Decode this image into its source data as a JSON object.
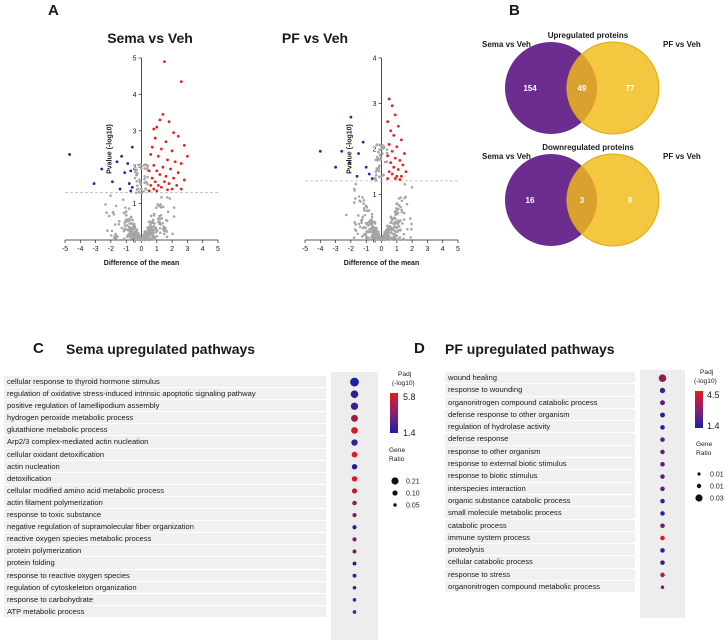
{
  "panel_letters": {
    "a": "A",
    "b": "B",
    "c": "C",
    "d": "D"
  },
  "colors": {
    "up": "#e8211c",
    "down": "#1f2aa8",
    "ns": "#a6a6a6",
    "sema": "#6c2d91",
    "pf": "#f2bb17",
    "overlap": "#d89028",
    "grad_high": "#e31a1c",
    "grad_low": "#1a1fa8"
  },
  "chart_data": [
    {
      "type": "scatter",
      "title": "Sema vs Veh",
      "xlabel": "Difference of the mean",
      "ylabel": "Pvalue (-log10)",
      "xlim": [
        -5,
        5
      ],
      "ylim": [
        0,
        5
      ],
      "xticks": [
        -5,
        -4,
        -3,
        -2,
        -1,
        0,
        1,
        2,
        3,
        4,
        5
      ],
      "yticks": [
        0,
        1,
        2,
        3,
        4,
        5
      ],
      "threshold": 1.3,
      "highlighted_points": [
        {
          "x": 1.5,
          "y": 4.9,
          "group": "up"
        },
        {
          "x": 2.6,
          "y": 4.35,
          "group": "up"
        },
        {
          "x": 1.4,
          "y": 3.45,
          "group": "up"
        },
        {
          "x": 1.2,
          "y": 3.3,
          "group": "up"
        },
        {
          "x": 1.8,
          "y": 3.25,
          "group": "up"
        },
        {
          "x": 0.8,
          "y": 3.05,
          "group": "up"
        },
        {
          "x": 1.0,
          "y": 3.1,
          "group": "up"
        },
        {
          "x": 2.1,
          "y": 2.95,
          "group": "up"
        },
        {
          "x": 2.4,
          "y": 2.85,
          "group": "up"
        },
        {
          "x": 0.9,
          "y": 2.8,
          "group": "up"
        },
        {
          "x": 1.6,
          "y": 2.7,
          "group": "up"
        },
        {
          "x": 2.8,
          "y": 2.6,
          "group": "up"
        },
        {
          "x": 0.7,
          "y": 2.55,
          "group": "up"
        },
        {
          "x": 1.3,
          "y": 2.5,
          "group": "up"
        },
        {
          "x": 2.0,
          "y": 2.45,
          "group": "up"
        },
        {
          "x": 3.0,
          "y": 2.3,
          "group": "up"
        },
        {
          "x": 0.6,
          "y": 2.35,
          "group": "up"
        },
        {
          "x": 1.1,
          "y": 2.3,
          "group": "up"
        },
        {
          "x": 1.7,
          "y": 2.2,
          "group": "up"
        },
        {
          "x": 2.2,
          "y": 2.15,
          "group": "up"
        },
        {
          "x": 2.6,
          "y": 2.1,
          "group": "up"
        },
        {
          "x": 0.8,
          "y": 2.05,
          "group": "up"
        },
        {
          "x": 1.4,
          "y": 2.0,
          "group": "up"
        },
        {
          "x": 1.9,
          "y": 1.95,
          "group": "up"
        },
        {
          "x": 0.5,
          "y": 1.9,
          "group": "up"
        },
        {
          "x": 1.0,
          "y": 1.9,
          "group": "up"
        },
        {
          "x": 2.4,
          "y": 1.85,
          "group": "up"
        },
        {
          "x": 1.2,
          "y": 1.8,
          "group": "up"
        },
        {
          "x": 1.6,
          "y": 1.75,
          "group": "up"
        },
        {
          "x": 2.1,
          "y": 1.7,
          "group": "up"
        },
        {
          "x": 0.7,
          "y": 1.7,
          "group": "up"
        },
        {
          "x": 2.8,
          "y": 1.65,
          "group": "up"
        },
        {
          "x": 0.9,
          "y": 1.6,
          "group": "up"
        },
        {
          "x": 1.5,
          "y": 1.6,
          "group": "up"
        },
        {
          "x": 1.8,
          "y": 1.55,
          "group": "up"
        },
        {
          "x": 0.6,
          "y": 1.5,
          "group": "up"
        },
        {
          "x": 1.1,
          "y": 1.5,
          "group": "up"
        },
        {
          "x": 2.3,
          "y": 1.5,
          "group": "up"
        },
        {
          "x": 1.3,
          "y": 1.45,
          "group": "up"
        },
        {
          "x": 2.0,
          "y": 1.4,
          "group": "up"
        },
        {
          "x": 0.8,
          "y": 1.4,
          "group": "up"
        },
        {
          "x": 1.7,
          "y": 1.38,
          "group": "up"
        },
        {
          "x": 2.6,
          "y": 1.4,
          "group": "up"
        },
        {
          "x": 0.5,
          "y": 1.35,
          "group": "up"
        },
        {
          "x": 1.0,
          "y": 1.35,
          "group": "up"
        },
        {
          "x": -0.6,
          "y": 2.55,
          "group": "down"
        },
        {
          "x": -1.3,
          "y": 2.3,
          "group": "down"
        },
        {
          "x": -1.6,
          "y": 2.15,
          "group": "down"
        },
        {
          "x": -0.9,
          "y": 2.1,
          "group": "down"
        },
        {
          "x": -2.6,
          "y": 1.95,
          "group": "down"
        },
        {
          "x": -0.7,
          "y": 1.9,
          "group": "down"
        },
        {
          "x": -1.1,
          "y": 1.85,
          "group": "down"
        },
        {
          "x": -4.7,
          "y": 2.35,
          "group": "down"
        },
        {
          "x": -3.1,
          "y": 1.55,
          "group": "down"
        },
        {
          "x": -1.9,
          "y": 1.6,
          "group": "down"
        },
        {
          "x": -0.8,
          "y": 1.55,
          "group": "down"
        },
        {
          "x": -0.6,
          "y": 1.45,
          "group": "down"
        },
        {
          "x": -1.4,
          "y": 1.4,
          "group": "down"
        },
        {
          "x": -0.7,
          "y": 1.35,
          "group": "down"
        }
      ]
    },
    {
      "type": "scatter",
      "title": "PF vs Veh",
      "xlabel": "Difference of the mean",
      "ylabel": "Pvalue (-log10)",
      "xlim": [
        -5,
        5
      ],
      "ylim": [
        0,
        4
      ],
      "xticks": [
        -5,
        -4,
        -3,
        -2,
        -1,
        0,
        1,
        2,
        3,
        4,
        5
      ],
      "yticks": [
        0,
        1,
        2,
        3,
        4
      ],
      "threshold": 1.3,
      "highlighted_points": [
        {
          "x": 0.5,
          "y": 3.1,
          "group": "up"
        },
        {
          "x": 0.7,
          "y": 2.95,
          "group": "up"
        },
        {
          "x": 0.9,
          "y": 2.75,
          "group": "up"
        },
        {
          "x": 0.4,
          "y": 2.6,
          "group": "up"
        },
        {
          "x": 1.1,
          "y": 2.5,
          "group": "up"
        },
        {
          "x": 0.6,
          "y": 2.4,
          "group": "up"
        },
        {
          "x": 0.8,
          "y": 2.3,
          "group": "up"
        },
        {
          "x": 1.3,
          "y": 2.2,
          "group": "up"
        },
        {
          "x": 0.5,
          "y": 2.1,
          "group": "up"
        },
        {
          "x": 1.0,
          "y": 2.05,
          "group": "up"
        },
        {
          "x": 0.7,
          "y": 1.95,
          "group": "up"
        },
        {
          "x": 1.5,
          "y": 1.9,
          "group": "up"
        },
        {
          "x": 0.4,
          "y": 1.85,
          "group": "up"
        },
        {
          "x": 0.9,
          "y": 1.8,
          "group": "up"
        },
        {
          "x": 1.2,
          "y": 1.75,
          "group": "up"
        },
        {
          "x": 0.6,
          "y": 1.7,
          "group": "up"
        },
        {
          "x": 1.4,
          "y": 1.65,
          "group": "up"
        },
        {
          "x": 0.8,
          "y": 1.6,
          "group": "up"
        },
        {
          "x": 1.1,
          "y": 1.55,
          "group": "up"
        },
        {
          "x": 0.5,
          "y": 1.5,
          "group": "up"
        },
        {
          "x": 1.6,
          "y": 1.5,
          "group": "up"
        },
        {
          "x": 0.7,
          "y": 1.45,
          "group": "up"
        },
        {
          "x": 1.0,
          "y": 1.4,
          "group": "up"
        },
        {
          "x": 1.3,
          "y": 1.4,
          "group": "up"
        },
        {
          "x": 0.4,
          "y": 1.35,
          "group": "up"
        },
        {
          "x": 0.9,
          "y": 1.35,
          "group": "up"
        },
        {
          "x": 1.2,
          "y": 1.33,
          "group": "up"
        },
        {
          "x": -2.0,
          "y": 2.7,
          "group": "down"
        },
        {
          "x": -1.2,
          "y": 2.15,
          "group": "down"
        },
        {
          "x": -4.0,
          "y": 1.95,
          "group": "down"
        },
        {
          "x": -2.6,
          "y": 1.95,
          "group": "down"
        },
        {
          "x": -1.5,
          "y": 1.9,
          "group": "down"
        },
        {
          "x": -2.1,
          "y": 1.7,
          "group": "down"
        },
        {
          "x": -3.0,
          "y": 1.6,
          "group": "down"
        },
        {
          "x": -1.0,
          "y": 1.6,
          "group": "down"
        },
        {
          "x": -1.6,
          "y": 1.4,
          "group": "down"
        },
        {
          "x": -0.8,
          "y": 1.45,
          "group": "down"
        },
        {
          "x": -0.6,
          "y": 1.35,
          "group": "down"
        }
      ]
    },
    {
      "type": "dot",
      "title": "Sema upregulated pathways",
      "legend": {
        "padj_title_1": "Padj",
        "padj_title_2": "(-log10)",
        "padj_max": "5.8",
        "padj_min": "1.4",
        "padj_range": [
          1.4,
          5.8
        ],
        "ratio_title_1": "Gene",
        "ratio_title_2": "Ratio",
        "ratio_labels": [
          "0.21",
          "0.10",
          "0.05"
        ],
        "ratio_values": [
          0.21,
          0.1,
          0.05
        ]
      },
      "terms": [
        {
          "label": "cellular response to thyroid hormone stimulus",
          "padj": 1.5,
          "ratio": 0.22
        },
        {
          "label": "regulation of oxidative stress-induced intrinsic apoptotic signaling pathway",
          "padj": 1.8,
          "ratio": 0.18
        },
        {
          "label": "positive regulation of lamellipodium assembly",
          "padj": 2.0,
          "ratio": 0.17
        },
        {
          "label": "hydrogen peroxide metabolic process",
          "padj": 4.3,
          "ratio": 0.16
        },
        {
          "label": "glutathione metabolic process",
          "padj": 5.5,
          "ratio": 0.15
        },
        {
          "label": "Arp2/3 complex-mediated actin nucleation",
          "padj": 1.9,
          "ratio": 0.14
        },
        {
          "label": "cellular oxidant detoxification",
          "padj": 5.8,
          "ratio": 0.12
        },
        {
          "label": "actin nucleation",
          "padj": 1.6,
          "ratio": 0.11
        },
        {
          "label": "detoxification",
          "padj": 5.7,
          "ratio": 0.11
        },
        {
          "label": "cellular modified amino acid metabolic process",
          "padj": 5.0,
          "ratio": 0.1
        },
        {
          "label": "actin filament polymerization",
          "padj": 4.0,
          "ratio": 0.08
        },
        {
          "label": "response to toxic substance",
          "padj": 3.8,
          "ratio": 0.07
        },
        {
          "label": "negative regulation of supramolecular fiber organization",
          "padj": 2.0,
          "ratio": 0.07
        },
        {
          "label": "reactive oxygen species metabolic process",
          "padj": 3.6,
          "ratio": 0.07
        },
        {
          "label": "protein polymerization",
          "padj": 3.2,
          "ratio": 0.06
        },
        {
          "label": "protein folding",
          "padj": 1.6,
          "ratio": 0.06
        },
        {
          "label": "response to reactive oxygen species",
          "padj": 2.3,
          "ratio": 0.06
        },
        {
          "label": "regulation of cytoskeleton organization",
          "padj": 1.8,
          "ratio": 0.05
        },
        {
          "label": "response to carbohydrate",
          "padj": 2.2,
          "ratio": 0.05
        },
        {
          "label": "ATP metabolic process",
          "padj": 2.5,
          "ratio": 0.05
        }
      ]
    },
    {
      "type": "dot",
      "title": "PF upregulated pathways",
      "legend": {
        "padj_title_1": "Padj",
        "padj_title_2": "(-log10)",
        "padj_max": "4.5",
        "padj_min": "1.4",
        "padj_range": [
          1.4,
          4.5
        ],
        "ratio_title_1": "Gene",
        "ratio_title_2": "Ratio",
        "ratio_labels": [
          "0.01",
          "0.01",
          "0.03"
        ],
        "ratio_values": [
          0.01,
          0.01,
          0.03
        ]
      },
      "terms": [
        {
          "label": "wound healing",
          "padj": 3.2,
          "ratio": 0.032
        },
        {
          "label": "response to wounding",
          "padj": 2.0,
          "ratio": 0.02
        },
        {
          "label": "organonitrogen compound catabolic process",
          "padj": 2.4,
          "ratio": 0.018
        },
        {
          "label": "defense response to other organism",
          "padj": 1.6,
          "ratio": 0.018
        },
        {
          "label": "regulation of hydrolase activity",
          "padj": 1.5,
          "ratio": 0.016
        },
        {
          "label": "defense response",
          "padj": 2.2,
          "ratio": 0.016
        },
        {
          "label": "response to other organism",
          "padj": 2.5,
          "ratio": 0.016
        },
        {
          "label": "response to external biotic stimulus",
          "padj": 2.5,
          "ratio": 0.016
        },
        {
          "label": "response to biotic stimulus",
          "padj": 2.5,
          "ratio": 0.016
        },
        {
          "label": " interspecies interaction",
          "padj": 2.4,
          "ratio": 0.016
        },
        {
          "label": "organic substance catabolic process",
          "padj": 2.1,
          "ratio": 0.016
        },
        {
          "label": "small molecule metabolic process",
          "padj": 1.8,
          "ratio": 0.016
        },
        {
          "label": "catabolic process",
          "padj": 2.6,
          "ratio": 0.016
        },
        {
          "label": "immune system process",
          "padj": 4.4,
          "ratio": 0.016
        },
        {
          "label": "proteolysis",
          "padj": 1.6,
          "ratio": 0.016
        },
        {
          "label": "cellular catabolic process",
          "padj": 1.9,
          "ratio": 0.016
        },
        {
          "label": "response to stress",
          "padj": 3.8,
          "ratio": 0.016
        },
        {
          "label": "organonitrogen compound metabolic process",
          "padj": 2.6,
          "ratio": 0.01
        }
      ]
    }
  ],
  "venn": {
    "up": {
      "title": "Upregulated proteins",
      "left_label": "Sema vs Veh",
      "right_label": "PF vs Veh",
      "left_only": "154",
      "overlap": "49",
      "right_only": "77"
    },
    "down": {
      "title": "Downregulated proteins",
      "left_label": "Sema vs Veh",
      "right_label": "PF vs Veh",
      "left_only": "16",
      "overlap": "3",
      "right_only": "9"
    }
  }
}
